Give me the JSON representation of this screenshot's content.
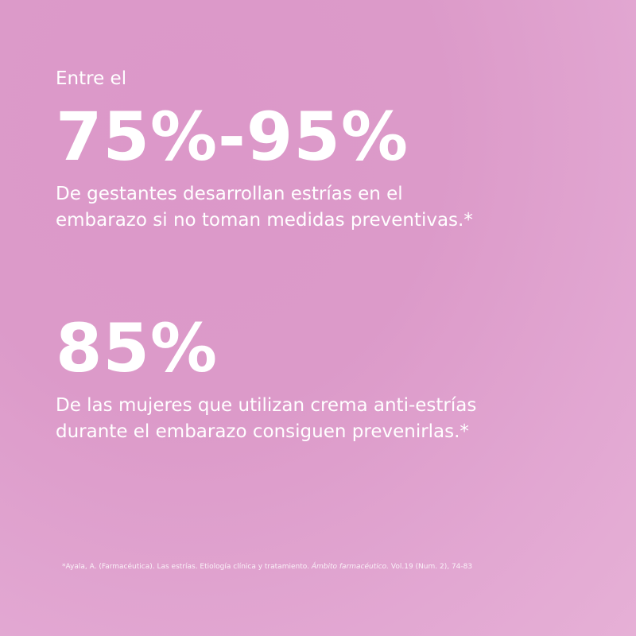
{
  "stat1": {
    "intro": "Entre el",
    "value": "75%-95%",
    "line1": "De gestantes desarrollan estrías en el",
    "line2": "embarazo si no toman medidas preventivas.*"
  },
  "stat2": {
    "value": "85%",
    "line1": "De las mujeres que utilizan crema anti-estrías",
    "line2": "durante el embarazo consiguen prevenirlas.*"
  },
  "footnote": {
    "pre": "*Ayala, A. (Farmacéutica). Las estrías. Etiología clínica y tratamiento. ",
    "journal": "Ámbito farmacéutico.",
    "post": " Vol.19 (Num. 2), 74-83"
  },
  "colors": {
    "background": "#dc9ac9",
    "text": "#ffffff"
  }
}
